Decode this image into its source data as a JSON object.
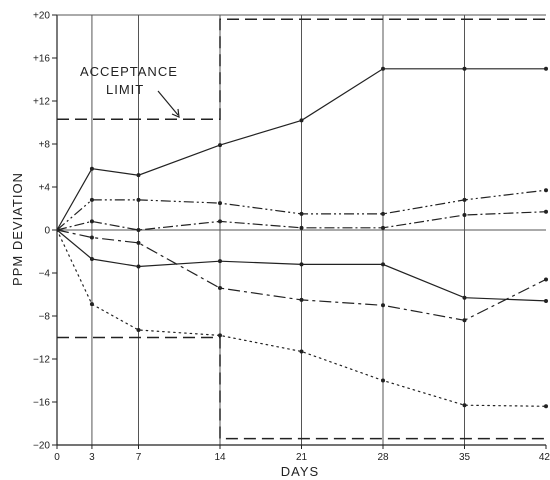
{
  "chart_data": {
    "type": "line",
    "xlabel": "DAYS",
    "ylabel": "PPM DEVIATION",
    "xlim": [
      0,
      42
    ],
    "ylim": [
      -20,
      20
    ],
    "x_ticks": [
      0,
      3,
      7,
      14,
      21,
      28,
      35,
      42
    ],
    "x_tick_labels": [
      "0",
      "3",
      "7",
      "14",
      "21",
      "28",
      "35",
      "42"
    ],
    "y_ticks": [
      20,
      16,
      12,
      8,
      4,
      0,
      -4,
      -8,
      -12,
      -16,
      -20
    ],
    "y_tick_labels": [
      "+20",
      "+16",
      "+12",
      "+8",
      "+4",
      "0",
      "−4",
      "−8",
      "−12",
      "−16",
      "−20"
    ],
    "grid": "vertical lines at x ticks; horizontal line at 0",
    "annotation": {
      "text_line1": "ACCEPTANCE",
      "text_line2": "LIMIT"
    },
    "acceptance_limit": {
      "style": "dashed",
      "upper": [
        {
          "x": 0,
          "y": 10.3
        },
        {
          "x": 14,
          "y": 10.3
        },
        {
          "x": 14,
          "y": 19.6
        },
        {
          "x": 42,
          "y": 19.6
        }
      ],
      "lower": [
        {
          "x": 0,
          "y": -10.0
        },
        {
          "x": 14,
          "y": -10.0
        },
        {
          "x": 14,
          "y": -19.4
        },
        {
          "x": 42,
          "y": -19.4
        }
      ]
    },
    "series": [
      {
        "style": "solid",
        "marker": true,
        "color": "#222222",
        "x": [
          0,
          3,
          7,
          14,
          21,
          28,
          35,
          42
        ],
        "y": [
          0,
          5.7,
          5.1,
          7.9,
          10.2,
          15.0,
          15.0,
          15.0
        ]
      },
      {
        "style": "dash-dot-dot",
        "marker": true,
        "color": "#222222",
        "x": [
          0,
          3,
          7,
          14,
          21,
          28,
          35,
          42
        ],
        "y": [
          0,
          2.8,
          2.8,
          2.5,
          1.5,
          1.5,
          2.8,
          3.7
        ]
      },
      {
        "style": "dash-dot",
        "marker": true,
        "color": "#222222",
        "x": [
          0,
          3,
          7,
          14,
          21,
          28,
          35,
          42
        ],
        "y": [
          0,
          0.8,
          0.0,
          0.8,
          0.2,
          0.2,
          1.4,
          1.7
        ]
      },
      {
        "style": "solid",
        "marker": true,
        "color": "#222222",
        "x": [
          0,
          3,
          7,
          14,
          21,
          28,
          35,
          42
        ],
        "y": [
          0,
          -2.7,
          -3.4,
          -2.9,
          -3.2,
          -3.2,
          -6.3,
          -6.6
        ]
      },
      {
        "style": "long-dash-dot",
        "marker": true,
        "color": "#222222",
        "x": [
          0,
          3,
          7,
          14,
          21,
          28,
          35,
          42
        ],
        "y": [
          0,
          -0.7,
          -1.2,
          -5.4,
          -6.5,
          -7.0,
          -8.4,
          -4.6
        ]
      },
      {
        "style": "dotted",
        "marker": true,
        "color": "#222222",
        "x": [
          0,
          3,
          7,
          14,
          21,
          28,
          35,
          42
        ],
        "y": [
          0,
          -6.9,
          -9.3,
          -9.8,
          -11.3,
          -14.0,
          -16.3,
          -16.4
        ]
      }
    ]
  }
}
